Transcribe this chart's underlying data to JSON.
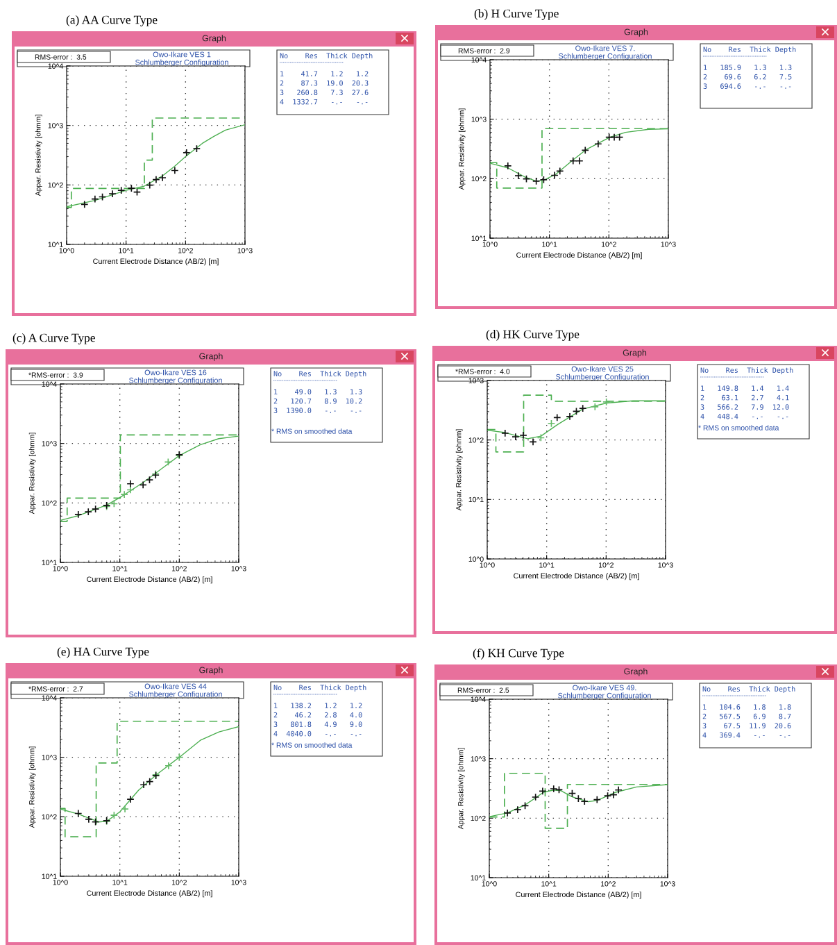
{
  "chart_data": [
    {
      "type": "scatter",
      "title": "(a) AA Curve Type",
      "subtitle": "Owo-Ikare VES 1\nSchlumberger Configuration",
      "xlabel": "Current Electrode Distance (AB/2) [m]",
      "ylabel": "Appar. Resistivity [ohmm]",
      "annotations": [
        "Graph",
        "RMS-error :  3.5",
        "No    Res  Thick Depth\n1    41.7   1.2   1.2\n2    87.3  19.0  20.3\n3   260.8   7.3  27.6\n4  1332.7   -.-   -.-"
      ],
      "log": "xy",
      "grid": true,
      "xlim": [
        1,
        1000
      ],
      "ylim": [
        10,
        10000
      ],
      "xticks": [
        {
          "value": 1,
          "label": "10^0"
        },
        {
          "value": 10,
          "label": "10^1"
        },
        {
          "value": 100,
          "label": "10^2"
        },
        {
          "value": 1000,
          "label": "10^3"
        }
      ],
      "yticks": [
        {
          "value": 10,
          "label": "10^1"
        },
        {
          "value": 100,
          "label": "10^2"
        },
        {
          "value": 1000,
          "label": "10^3"
        },
        {
          "value": 10000,
          "label": "10^4"
        }
      ],
      "series": [
        {
          "type": "step",
          "color": "#4caf50",
          "line_style": "dashed",
          "x": [
            1,
            1.2,
            20.3,
            27.6,
            1000
          ],
          "values": [
            41.7,
            87.3,
            260.8,
            1332.7,
            1332.7
          ]
        },
        {
          "type": "line",
          "color": "#4caf50",
          "line_style": "solid",
          "x": [
            1,
            3,
            10,
            20,
            41,
            65,
            100,
            192,
            300,
            470,
            1000
          ],
          "values": [
            43,
            55,
            81,
            95,
            142,
            204,
            300,
            500,
            655,
            836,
            1028
          ]
        },
        {
          "type": "scatter",
          "color": "#111111",
          "marker": "cross",
          "x": [
            2.0,
            3.0,
            4.0,
            5.9,
            8.3,
            12.3,
            15.3,
            25,
            32,
            41,
            66,
            104,
            154
          ],
          "values": [
            47,
            58,
            63,
            71,
            81,
            88,
            76,
            99,
            123,
            132,
            175,
            349,
            406
          ]
        }
      ]
    },
    {
      "type": "scatter",
      "title": "(b) H Curve Type",
      "subtitle": "Owo-Ikare VES 7.\nSchlumberger Configuration",
      "xlabel": "Current Electrode Distance (AB/2) [m]",
      "ylabel": "Appar. Resistivity [ohmm]",
      "annotations": [
        "Graph",
        "RMS-error :  2.9",
        "No    Res  Thick Depth\n1   185.9   1.3   1.3\n2    69.6   6.2   7.5\n3   694.6   -.-   -.-"
      ],
      "log": "xy",
      "grid": true,
      "xlim": [
        1,
        1000
      ],
      "ylim": [
        10,
        10000
      ],
      "xticks": [
        {
          "value": 1,
          "label": "10^0"
        },
        {
          "value": 10,
          "label": "10^1"
        },
        {
          "value": 100,
          "label": "10^2"
        },
        {
          "value": 1000,
          "label": "10^3"
        }
      ],
      "yticks": [
        {
          "value": 10,
          "label": "10^1"
        },
        {
          "value": 100,
          "label": "10^2"
        },
        {
          "value": 1000,
          "label": "10^3"
        },
        {
          "value": 10000,
          "label": "10^4"
        }
      ],
      "series": [
        {
          "type": "step",
          "color": "#4caf50",
          "line_style": "dashed",
          "x": [
            1,
            1.3,
            7.5,
            1000
          ],
          "values": [
            185.9,
            69.6,
            694.6,
            694.6
          ]
        },
        {
          "type": "line",
          "color": "#4caf50",
          "line_style": "solid",
          "x": [
            1,
            2,
            4,
            6,
            8,
            13,
            24,
            41,
            100,
            190,
            465,
            1000
          ],
          "values": [
            182,
            152,
            105,
            91,
            94,
            120,
            200,
            306,
            489,
            600,
            675,
            687
          ]
        },
        {
          "type": "scatter",
          "color": "#111111",
          "marker": "cross",
          "x": [
            2.0,
            3.0,
            4.1,
            6.0,
            8.0,
            12.2,
            15,
            25,
            32,
            40,
            66,
            101,
            123,
            151
          ],
          "values": [
            164,
            112,
            99,
            91,
            96,
            114,
            134,
            199,
            199,
            301,
            384,
            497,
            497,
            497
          ]
        }
      ]
    },
    {
      "type": "scatter",
      "title": "(c) A Curve Type",
      "subtitle": "Owo-Ikare VES 16\nSchlumberger Configuration",
      "xlabel": "Current Electrode Distance (AB/2) [m]",
      "ylabel": "Appar. Resistivity [ohmm]",
      "annotations": [
        "Graph",
        "*RMS-error :  3.9",
        "No    Res  Thick Depth\n1    49.0   1.3   1.3\n2   120.7   8.9  10.2\n3  1390.0   -.-   -.-",
        "* RMS on smoothed data"
      ],
      "log": "xy",
      "grid": true,
      "xlim": [
        1,
        1000
      ],
      "ylim": [
        10,
        10000
      ],
      "xticks": [
        {
          "value": 1,
          "label": "10^0"
        },
        {
          "value": 10,
          "label": "10^1"
        },
        {
          "value": 100,
          "label": "10^2"
        },
        {
          "value": 1000,
          "label": "10^3"
        }
      ],
      "yticks": [
        {
          "value": 10,
          "label": "10^1"
        },
        {
          "value": 100,
          "label": "10^2"
        },
        {
          "value": 1000,
          "label": "10^3"
        },
        {
          "value": 10000,
          "label": "10^4"
        }
      ],
      "series": [
        {
          "type": "step",
          "color": "#4caf50",
          "line_style": "dashed",
          "x": [
            1,
            1.3,
            10.2,
            1000
          ],
          "values": [
            49.0,
            120.7,
            1390.0,
            1390.0
          ]
        },
        {
          "type": "line",
          "color": "#4caf50",
          "line_style": "solid",
          "x": [
            1,
            2,
            6,
            10,
            24.6,
            50,
            100,
            224,
            461,
            1000
          ],
          "values": [
            51,
            61,
            92,
            123,
            220,
            374,
            625,
            948,
            1205,
            1328
          ]
        },
        {
          "type": "scatter",
          "color": "#66bb6a",
          "marker": "cross",
          "x": [
            6.0,
            8.0,
            11.9,
            15.1,
            40,
            65,
            100
          ],
          "values": [
            87,
            97,
            139,
            166,
            308,
            488,
            625
          ]
        },
        {
          "type": "scatter",
          "color": "#111111",
          "marker": "cross",
          "x": [
            2.0,
            2.95,
            3.9,
            6.0,
            15.1,
            24.6,
            31.6,
            40,
            100
          ],
          "values": [
            64,
            71,
            79,
            91,
            210,
            201,
            244,
            294,
            648
          ]
        }
      ]
    },
    {
      "type": "scatter",
      "title": "(d) HK Curve Type",
      "subtitle": "Owo-Ikare VES 25\nSchlumberger Configuration",
      "xlabel": "Current Electrode Distance (AB/2) [m]",
      "ylabel": "Appar. Resistivity [ohmm]",
      "annotations": [
        "Graph",
        "*RMS-error :  4.0",
        "No    Res  Thick Depth\n1   149.8   1.4   1.4\n2    63.1   2.7   4.1\n3   566.2   7.9  12.0\n4   448.4   -.-   -.-",
        "* RMS on smoothed data"
      ],
      "log": "xy",
      "grid": true,
      "xlim": [
        1,
        1000
      ],
      "ylim": [
        1,
        1000
      ],
      "xticks": [
        {
          "value": 1,
          "label": "10^0"
        },
        {
          "value": 10,
          "label": "10^1"
        },
        {
          "value": 100,
          "label": "10^2"
        },
        {
          "value": 1000,
          "label": "10^3"
        }
      ],
      "yticks": [
        {
          "value": 1,
          "label": "10^0"
        },
        {
          "value": 10,
          "label": "10^1"
        },
        {
          "value": 100,
          "label": "10^2"
        },
        {
          "value": 1000,
          "label": "10^3"
        }
      ],
      "series": [
        {
          "type": "step",
          "color": "#4caf50",
          "line_style": "dashed",
          "x": [
            1,
            1.4,
            4.1,
            12.0,
            1000
          ],
          "values": [
            149.8,
            63.1,
            566.2,
            448.4,
            448.4
          ]
        },
        {
          "type": "line",
          "color": "#4caf50",
          "line_style": "solid",
          "x": [
            1,
            2,
            4.8,
            8,
            15.3,
            40.5,
            101,
            283,
            1000
          ],
          "values": [
            146,
            133,
            105,
            116,
            182,
            331,
            417,
            456,
            456
          ]
        },
        {
          "type": "scatter",
          "color": "#66bb6a",
          "marker": "cross",
          "x": [
            8.0,
            12.0,
            65,
            101
          ],
          "values": [
            109,
            190,
            362,
            436
          ]
        },
        {
          "type": "scatter",
          "color": "#111111",
          "marker": "cross",
          "x": [
            2.0,
            3.0,
            4.05,
            5.9,
            15,
            24.5,
            31.6,
            40.5
          ],
          "values": [
            130,
            113,
            120,
            93,
            238,
            248,
            303,
            340
          ]
        }
      ]
    },
    {
      "type": "scatter",
      "title": "(e) HA Curve Type",
      "subtitle": "Owo-Ikare VES 44\nSchlumberger Configuration",
      "xlabel": "Current Electrode Distance (AB/2) [m]",
      "ylabel": "Appar. Resistivity [ohmm]",
      "annotations": [
        "Graph",
        "*RMS-error :  2.7",
        "No    Res  Thick Depth\n1   138.2   1.2   1.2\n2    46.2   2.8   4.0\n3   801.8   4.9   9.0\n4  4040.0   -.-   -.-",
        "* RMS on smoothed data"
      ],
      "log": "xy",
      "grid": true,
      "xlim": [
        1,
        1000
      ],
      "ylim": [
        10,
        10000
      ],
      "xticks": [
        {
          "value": 1,
          "label": "10^0"
        },
        {
          "value": 10,
          "label": "10^1"
        },
        {
          "value": 100,
          "label": "10^2"
        },
        {
          "value": 1000,
          "label": "10^3"
        }
      ],
      "yticks": [
        {
          "value": 10,
          "label": "10^1"
        },
        {
          "value": 100,
          "label": "10^2"
        },
        {
          "value": 1000,
          "label": "10^3"
        },
        {
          "value": 10000,
          "label": "10^4"
        }
      ],
      "series": [
        {
          "type": "step",
          "color": "#4caf50",
          "line_style": "dashed",
          "x": [
            1,
            1.2,
            4.0,
            9.0,
            1000
          ],
          "values": [
            138.2,
            46.2,
            801.8,
            4040.0,
            4040.0
          ]
        },
        {
          "type": "line",
          "color": "#4caf50",
          "line_style": "solid",
          "x": [
            1,
            2,
            4.4,
            6,
            10,
            20.7,
            42,
            100,
            226,
            465,
            1000
          ],
          "values": [
            135,
            111,
            82,
            84,
            121,
            280,
            517,
            1000,
            1932,
            2675,
            3273
          ]
        },
        {
          "type": "scatter",
          "color": "#66bb6a",
          "marker": "cross",
          "x": [
            6.0,
            8.0,
            12.2,
            40.4,
            66,
            100
          ],
          "values": [
            84,
            106,
            135,
            508,
            722,
            1000
          ]
        },
        {
          "type": "scatter",
          "color": "#111111",
          "marker": "cross",
          "x": [
            2.0,
            3.0,
            3.9,
            6.0,
            15.1,
            25.2,
            31.8,
            40.4
          ],
          "values": [
            114,
            91,
            82,
            86,
            197,
            345,
            391,
            491
          ]
        }
      ]
    },
    {
      "type": "scatter",
      "title": "(f) KH Curve Type",
      "subtitle": "Owo-Ikare VES 49.\nSchlumberger Configuration",
      "xlabel": "Current Electrode Distance (AB/2) [m]",
      "ylabel": "Appar. Resistivity [ohmm]",
      "annotations": [
        "Graph",
        "RMS-error :  2.5",
        "No    Res  Thick Depth\n1   104.6   1.8   1.8\n2   567.5   6.9   8.7\n3    67.5  11.9  20.6\n4   369.4   -.-   -.-"
      ],
      "log": "xy",
      "grid": true,
      "xlim": [
        1,
        1000
      ],
      "ylim": [
        10,
        10000
      ],
      "xticks": [
        {
          "value": 1,
          "label": "10^0"
        },
        {
          "value": 10,
          "label": "10^1"
        },
        {
          "value": 100,
          "label": "10^2"
        },
        {
          "value": 1000,
          "label": "10^3"
        }
      ],
      "yticks": [
        {
          "value": 10,
          "label": "10^1"
        },
        {
          "value": 100,
          "label": "10^2"
        },
        {
          "value": 1000,
          "label": "10^3"
        },
        {
          "value": 10000,
          "label": "10^4"
        }
      ],
      "series": [
        {
          "type": "step",
          "color": "#4caf50",
          "line_style": "dashed",
          "x": [
            1,
            1.8,
            8.7,
            20.6,
            1000
          ],
          "values": [
            104.6,
            567.5,
            67.5,
            369.4,
            369.4
          ]
        },
        {
          "type": "line",
          "color": "#4caf50",
          "line_style": "solid",
          "x": [
            1,
            2,
            4,
            8.2,
            12.2,
            15.9,
            24.8,
            46,
            66,
            134,
            300,
            1000
          ],
          "values": [
            106,
            122,
            167,
            273,
            298,
            290,
            228,
            189,
            199,
            273,
            335,
            366
          ]
        },
        {
          "type": "scatter",
          "color": "#111111",
          "marker": "cross",
          "x": [
            2.02,
            3.0,
            4.0,
            6.0,
            7.9,
            12.1,
            14.9,
            24.8,
            31.5,
            40,
            65,
            98,
            123,
            149
          ],
          "values": [
            122,
            139,
            162,
            226,
            285,
            312,
            301,
            261,
            214,
            191,
            205,
            238,
            247,
            298
          ]
        }
      ]
    }
  ]
}
